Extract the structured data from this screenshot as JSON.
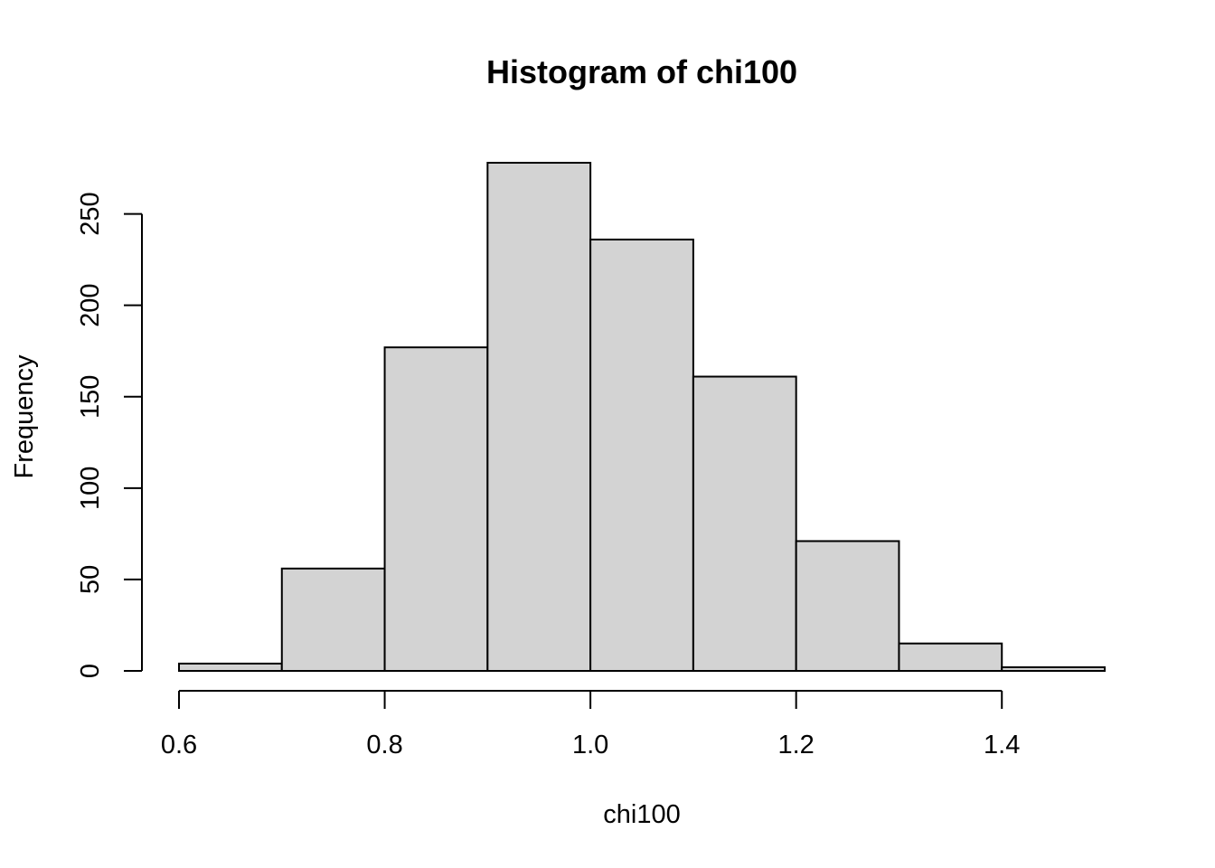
{
  "chart_data": {
    "type": "bar",
    "title": "Histogram of chi100",
    "xlabel": "chi100",
    "ylabel": "Frequency",
    "bins": [
      {
        "start": 0.6,
        "end": 0.7,
        "count": 4
      },
      {
        "start": 0.7,
        "end": 0.8,
        "count": 56
      },
      {
        "start": 0.8,
        "end": 0.9,
        "count": 177
      },
      {
        "start": 0.9,
        "end": 1.0,
        "count": 278
      },
      {
        "start": 1.0,
        "end": 1.1,
        "count": 236
      },
      {
        "start": 1.1,
        "end": 1.2,
        "count": 161
      },
      {
        "start": 1.2,
        "end": 1.3,
        "count": 71
      },
      {
        "start": 1.3,
        "end": 1.4,
        "count": 15
      },
      {
        "start": 1.4,
        "end": 1.5,
        "count": 2
      }
    ],
    "xticks": [
      {
        "value": 0.6,
        "label": "0.6"
      },
      {
        "value": 0.8,
        "label": "0.8"
      },
      {
        "value": 1.0,
        "label": "1.0"
      },
      {
        "value": 1.2,
        "label": "1.2"
      },
      {
        "value": 1.4,
        "label": "1.4"
      }
    ],
    "yticks": [
      {
        "value": 0,
        "label": "0"
      },
      {
        "value": 50,
        "label": "50"
      },
      {
        "value": 100,
        "label": "100"
      },
      {
        "value": 150,
        "label": "150"
      },
      {
        "value": 200,
        "label": "200"
      },
      {
        "value": 250,
        "label": "250"
      }
    ],
    "xlim": [
      0.6,
      1.5
    ],
    "ylim": [
      0,
      278
    ],
    "grid": false,
    "bar_color": "#d3d3d3",
    "edge_color": "#000000"
  }
}
